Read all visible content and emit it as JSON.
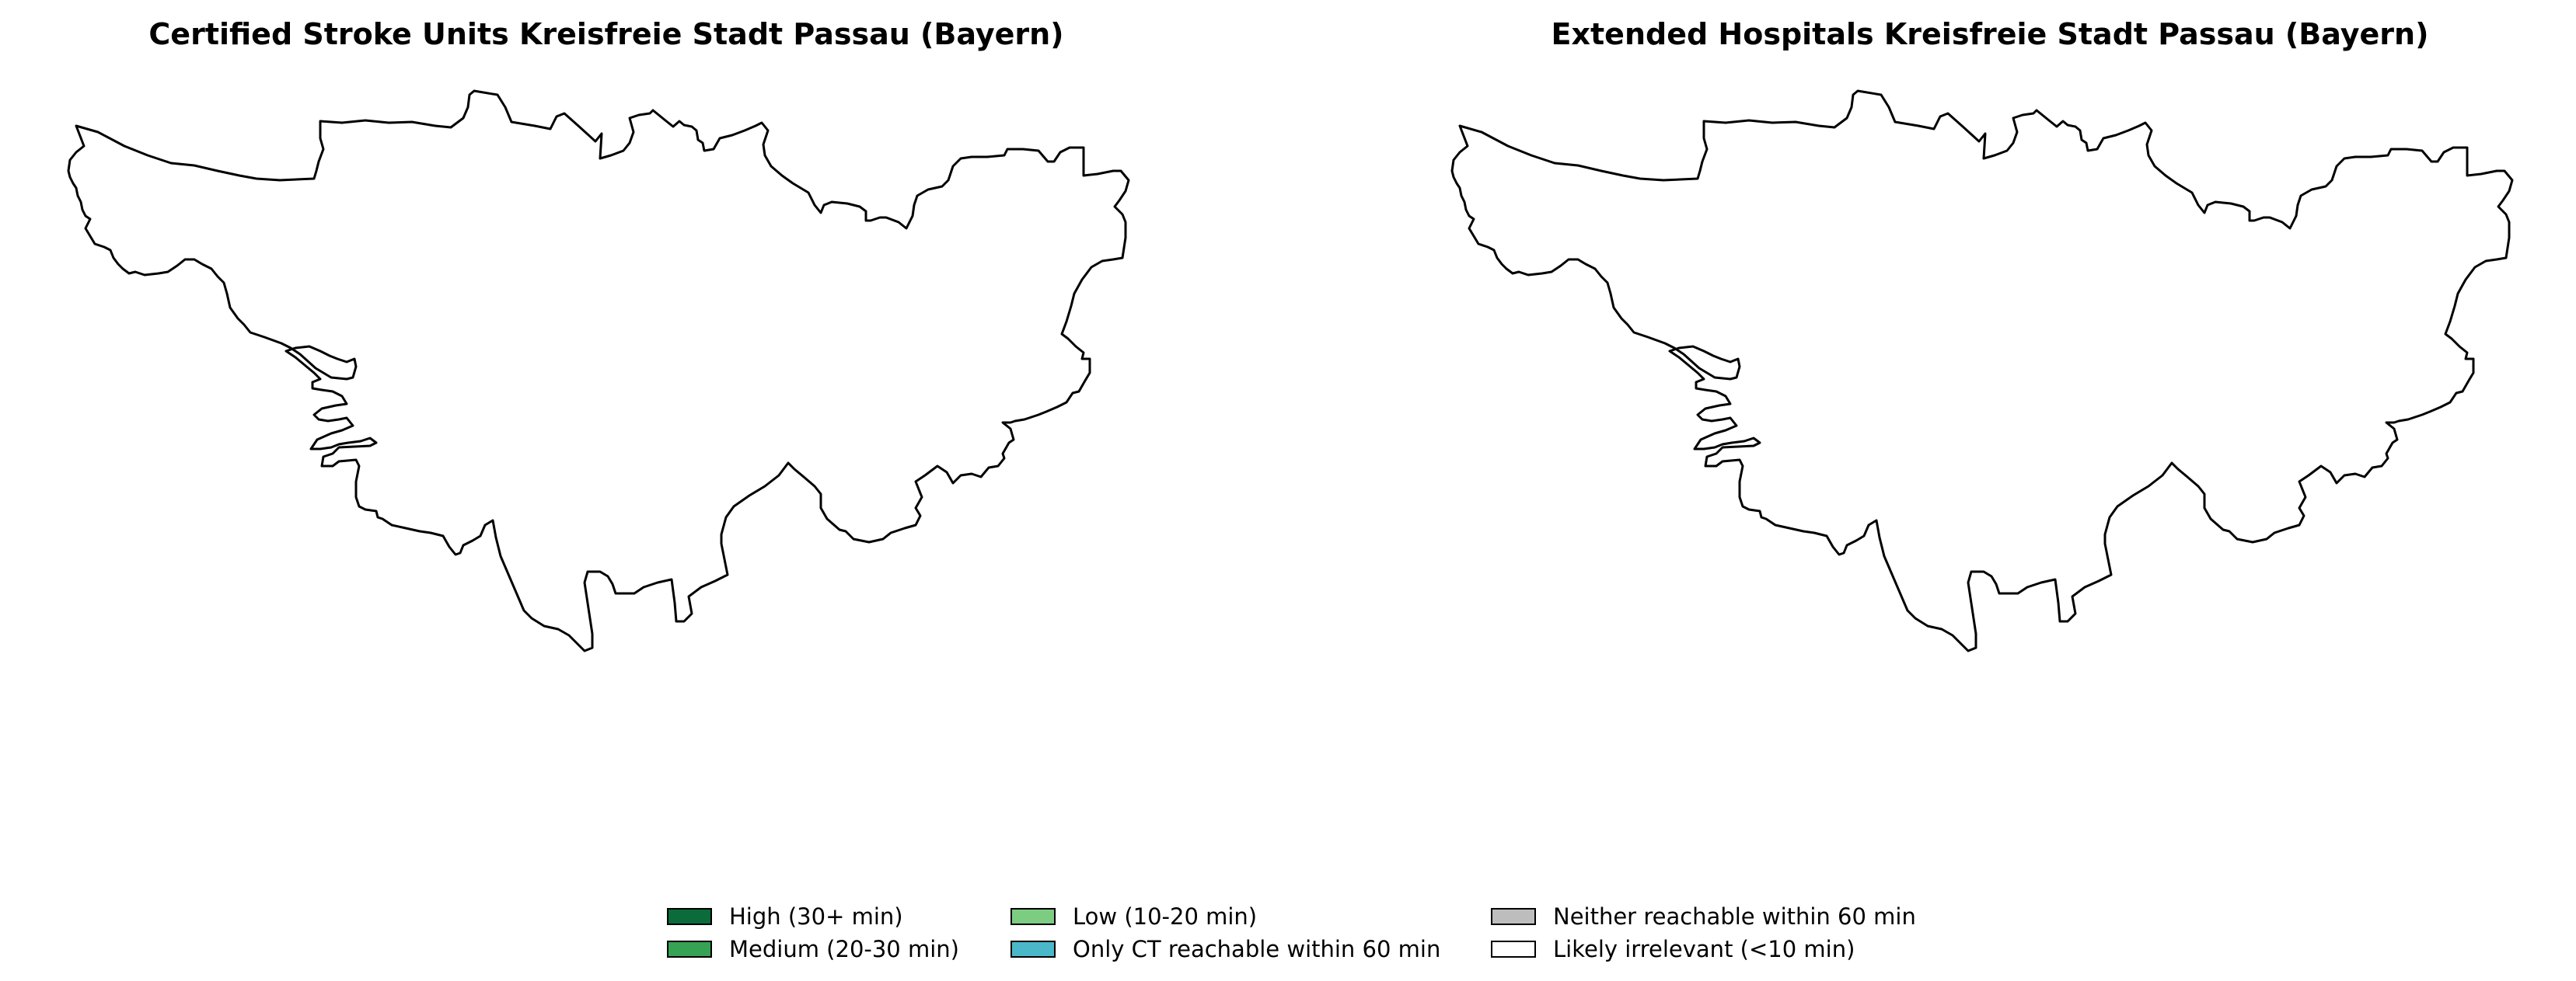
{
  "maps": [
    {
      "title": "Certified Stroke Units Kreisfreie Stadt Passau (Bayern)",
      "region_fill": "#ffffff",
      "region_stroke": "#000000"
    },
    {
      "title": "Extended Hospitals Kreisfreie Stadt Passau (Bayern)",
      "region_fill": "#ffffff",
      "region_stroke": "#000000"
    }
  ],
  "legend": {
    "items": [
      {
        "label": "High (30+ min)",
        "color": "#0b6b3a"
      },
      {
        "label": "Medium (20-30 min)",
        "color": "#36a254"
      },
      {
        "label": "Low (10-20 min)",
        "color": "#7ccd82"
      },
      {
        "label": "Only CT reachable within 60 min",
        "color": "#4ab8c9"
      },
      {
        "label": "Neither reachable within 60 min",
        "color": "#bdbdbd"
      },
      {
        "label": "Likely irrelevant (<10 min)",
        "color": "#ffffff"
      }
    ]
  }
}
